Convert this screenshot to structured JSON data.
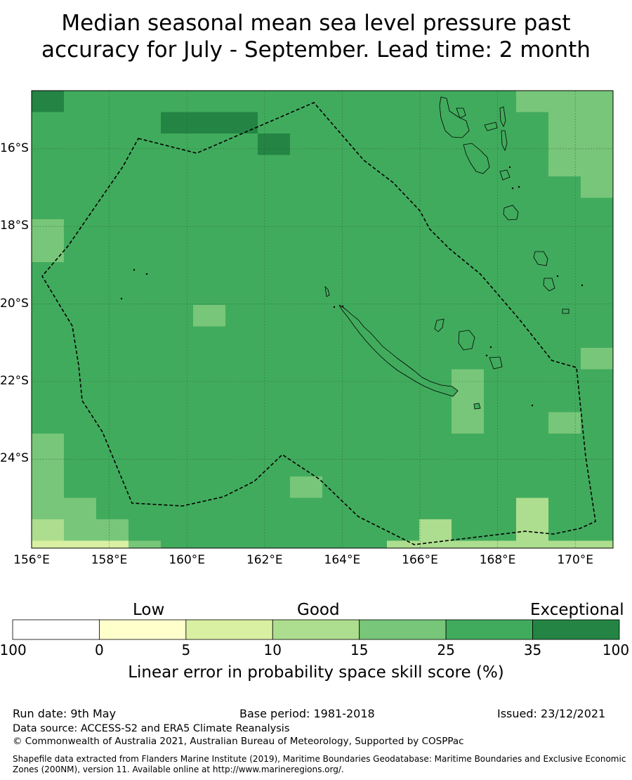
{
  "title_line1": "Median seasonal mean sea level pressure past",
  "title_line2": "accuracy for July - September. Lead time: 2 month",
  "map": {
    "lon_range": [
      156,
      171
    ],
    "lat_range": [
      -26.3,
      -14.5
    ],
    "lon_ticks": [
      "156°E",
      "158°E",
      "160°E",
      "162°E",
      "164°E",
      "166°E",
      "168°E",
      "170°E"
    ],
    "lat_ticks": [
      "16°S",
      "18°S",
      "20°S",
      "22°S",
      "24°S"
    ],
    "grid": true
  },
  "legend": {
    "categories": [
      "Low",
      "Good",
      "Exceptional"
    ],
    "ticks": [
      "-100",
      "0",
      "5",
      "10",
      "15",
      "25",
      "35",
      "100"
    ],
    "colors": [
      "#ffffff",
      "#ffffcc",
      "#d9f0a3",
      "#addd8e",
      "#78c679",
      "#41ab5d",
      "#238443"
    ],
    "label": "Linear error in probability space skill score (%)"
  },
  "footer": {
    "run_date": "Run date: 9th May",
    "base_period": "Base period: 1981-2018",
    "issued": "Issued: 23/12/2021",
    "data_source": "Data source: ACCESS-S2 and ERA5 Climate Reanalysis",
    "copyright": "© Commonwealth of Australia 2021, Australian Bureau of Meteorology, Supported by COSPPac",
    "shapefile_line1": "Shapefile data extracted from Flanders Marine Institute (2019), Maritime Boundaries Geodatabase: Maritime Boundaries and Exclusive Economic",
    "shapefile_line2": "Zones (200NM), version 11. Available online at http://www.marineregions.org/."
  }
}
